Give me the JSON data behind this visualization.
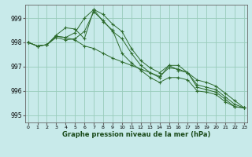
{
  "title": "Graphe pression niveau de la mer (hPa)",
  "x_ticks": [
    0,
    1,
    2,
    3,
    4,
    5,
    6,
    7,
    8,
    9,
    10,
    11,
    12,
    13,
    14,
    15,
    16,
    17,
    18,
    19,
    20,
    21,
    22,
    23
  ],
  "ylim": [
    994.7,
    999.55
  ],
  "yticks": [
    995,
    996,
    997,
    998,
    999
  ],
  "xlim": [
    -0.3,
    23.3
  ],
  "background_color": "#c8eaea",
  "grid_color": "#99ccbb",
  "line_color": "#2d6b2d",
  "series": [
    [
      998.0,
      997.85,
      997.9,
      998.2,
      998.1,
      998.15,
      998.45,
      999.25,
      998.9,
      998.45,
      998.15,
      997.55,
      997.05,
      996.75,
      996.55,
      997.05,
      997.05,
      996.75,
      996.15,
      996.05,
      995.95,
      995.65,
      995.35,
      995.3
    ],
    [
      998.0,
      997.85,
      997.9,
      998.3,
      998.6,
      998.55,
      998.15,
      999.35,
      999.15,
      998.75,
      998.45,
      997.75,
      997.25,
      996.95,
      996.75,
      997.05,
      996.85,
      996.75,
      996.25,
      996.15,
      996.05,
      995.75,
      995.45,
      995.3
    ],
    [
      998.0,
      997.85,
      997.9,
      998.25,
      998.2,
      998.4,
      999.0,
      999.35,
      998.85,
      998.5,
      997.55,
      997.15,
      996.85,
      996.55,
      996.35,
      996.55,
      996.55,
      996.45,
      996.0,
      995.95,
      995.85,
      995.55,
      995.35,
      995.3
    ],
    [
      998.0,
      997.85,
      997.9,
      998.25,
      998.2,
      998.1,
      997.85,
      997.75,
      997.55,
      997.35,
      997.2,
      997.05,
      996.9,
      996.75,
      996.6,
      996.95,
      996.9,
      996.75,
      996.45,
      996.35,
      996.2,
      995.9,
      995.6,
      995.3
    ]
  ]
}
